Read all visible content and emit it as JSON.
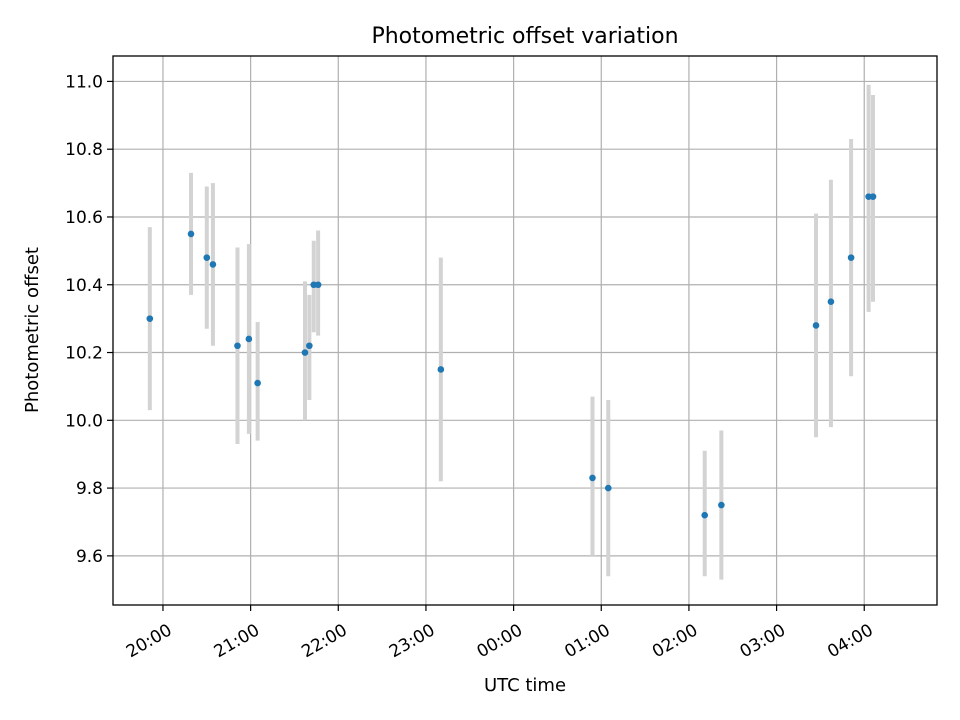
{
  "chart_data": {
    "type": "scatter",
    "title": "Photometric offset variation",
    "xlabel": "UTC time",
    "ylabel": "Photometric offset",
    "x_axis": "time (hours, UTC), ticks wrap past midnight",
    "xticks": [
      {
        "t": 20,
        "label": "20:00"
      },
      {
        "t": 21,
        "label": "21:00"
      },
      {
        "t": 22,
        "label": "22:00"
      },
      {
        "t": 23,
        "label": "23:00"
      },
      {
        "t": 24,
        "label": "00:00"
      },
      {
        "t": 25,
        "label": "01:00"
      },
      {
        "t": 26,
        "label": "02:00"
      },
      {
        "t": 27,
        "label": "03:00"
      },
      {
        "t": 28,
        "label": "04:00"
      }
    ],
    "yticks": [
      9.6,
      9.8,
      10.0,
      10.2,
      10.4,
      10.6,
      10.8,
      11.0
    ],
    "xlim": [
      19.43,
      28.83
    ],
    "ylim": [
      9.455,
      11.075
    ],
    "grid": true,
    "point_color": "#1f77b4",
    "errorbar_color": "#d3d3d3",
    "points": [
      {
        "t": 19.85,
        "y": 10.3,
        "lo": 10.03,
        "hi": 10.57
      },
      {
        "t": 20.32,
        "y": 10.55,
        "lo": 10.37,
        "hi": 10.73
      },
      {
        "t": 20.5,
        "y": 10.48,
        "lo": 10.27,
        "hi": 10.69
      },
      {
        "t": 20.57,
        "y": 10.46,
        "lo": 10.22,
        "hi": 10.7
      },
      {
        "t": 20.85,
        "y": 10.22,
        "lo": 9.93,
        "hi": 10.51
      },
      {
        "t": 20.98,
        "y": 10.24,
        "lo": 9.96,
        "hi": 10.52
      },
      {
        "t": 21.08,
        "y": 10.11,
        "lo": 9.94,
        "hi": 10.29
      },
      {
        "t": 21.62,
        "y": 10.2,
        "lo": 10.0,
        "hi": 10.41
      },
      {
        "t": 21.67,
        "y": 10.22,
        "lo": 10.06,
        "hi": 10.37
      },
      {
        "t": 21.72,
        "y": 10.4,
        "lo": 10.26,
        "hi": 10.53
      },
      {
        "t": 21.77,
        "y": 10.4,
        "lo": 10.25,
        "hi": 10.56
      },
      {
        "t": 23.17,
        "y": 10.15,
        "lo": 9.82,
        "hi": 10.48
      },
      {
        "t": 24.9,
        "y": 9.83,
        "lo": 9.6,
        "hi": 10.07
      },
      {
        "t": 25.08,
        "y": 9.8,
        "lo": 9.54,
        "hi": 10.06
      },
      {
        "t": 26.18,
        "y": 9.72,
        "lo": 9.54,
        "hi": 9.91
      },
      {
        "t": 26.37,
        "y": 9.75,
        "lo": 9.53,
        "hi": 9.97
      },
      {
        "t": 27.45,
        "y": 10.28,
        "lo": 9.95,
        "hi": 10.61
      },
      {
        "t": 27.62,
        "y": 10.35,
        "lo": 9.98,
        "hi": 10.71
      },
      {
        "t": 27.85,
        "y": 10.48,
        "lo": 10.13,
        "hi": 10.83
      },
      {
        "t": 28.05,
        "y": 10.66,
        "lo": 10.32,
        "hi": 10.99
      },
      {
        "t": 28.1,
        "y": 10.66,
        "lo": 10.35,
        "hi": 10.96
      }
    ]
  }
}
